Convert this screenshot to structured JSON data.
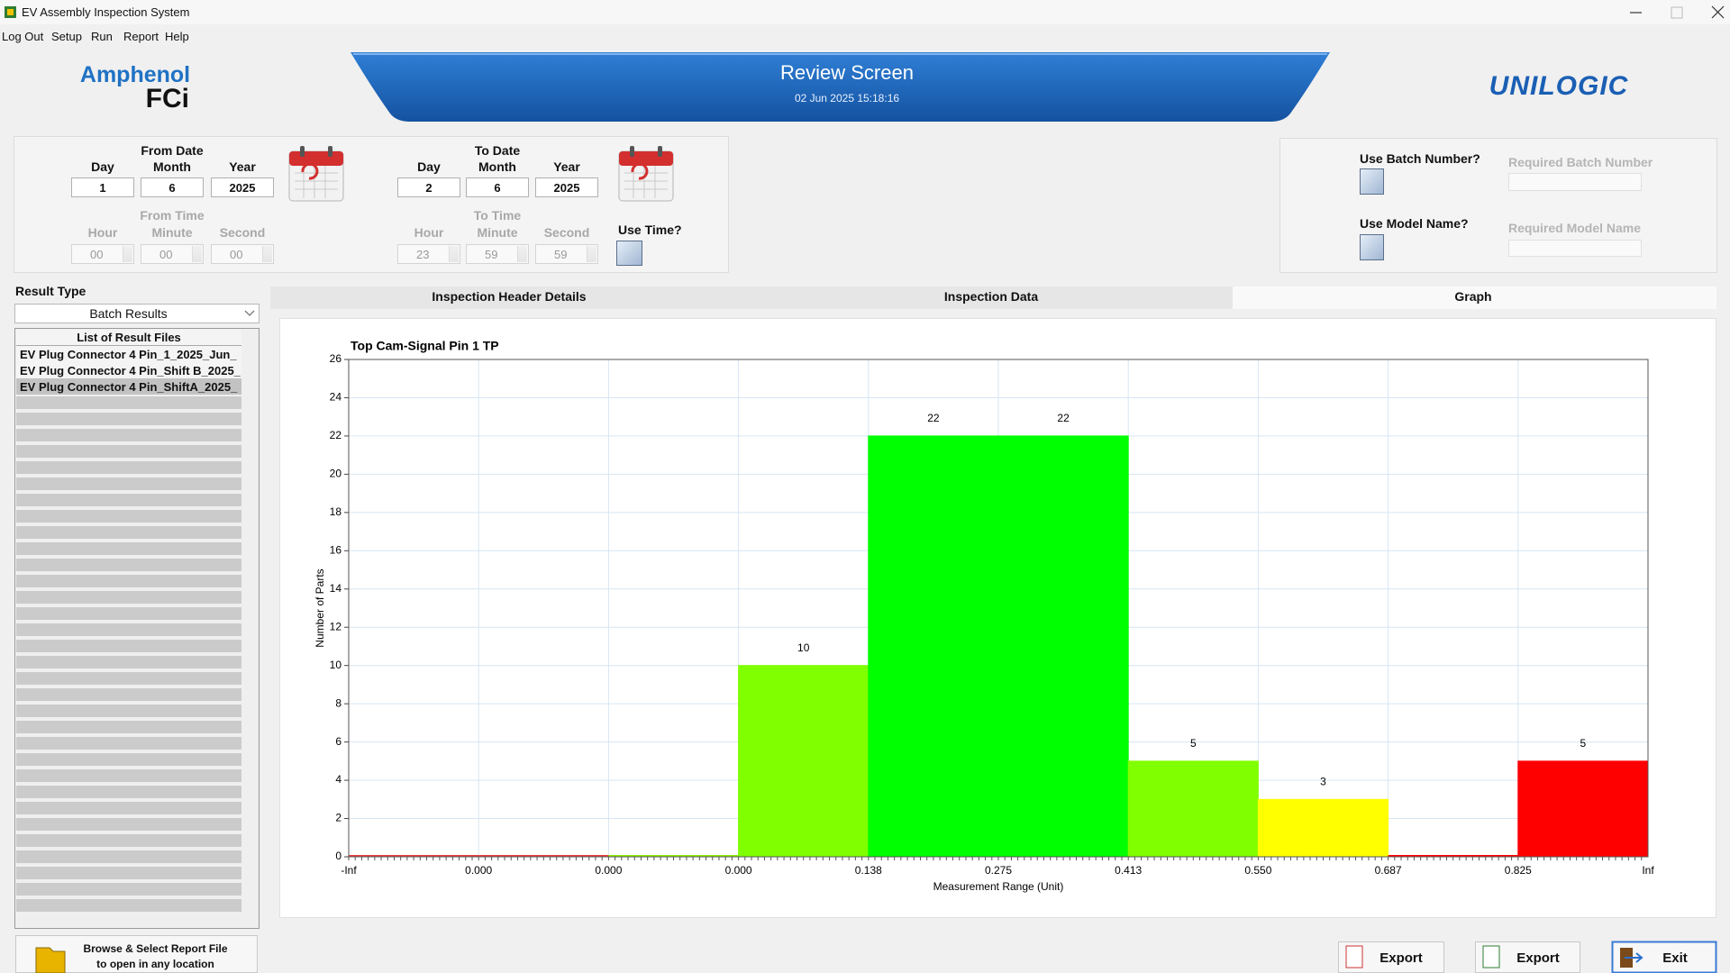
{
  "window": {
    "title": "EV Assembly Inspection System"
  },
  "menu": [
    "Log Out",
    "Setup",
    "Run",
    "Report",
    "Help"
  ],
  "header": {
    "brand_left_top": "Amphenol",
    "brand_left_bottom": "FCi",
    "title": "Review Screen",
    "datetime": "02 Jun 2025 15:18:16",
    "brand_right": "UNILOGIC"
  },
  "filters": {
    "from_date": {
      "heading": "From Date",
      "fields": [
        {
          "label": "Day",
          "value": "1"
        },
        {
          "label": "Month",
          "value": "6"
        },
        {
          "label": "Year",
          "value": "2025"
        }
      ]
    },
    "from_time": {
      "heading": "From Time",
      "fields": [
        {
          "label": "Hour",
          "value": "00"
        },
        {
          "label": "Minute",
          "value": "00"
        },
        {
          "label": "Second",
          "value": "00"
        }
      ]
    },
    "to_date": {
      "heading": "To Date",
      "fields": [
        {
          "label": "Day",
          "value": "2"
        },
        {
          "label": "Month",
          "value": "6"
        },
        {
          "label": "Year",
          "value": "2025"
        }
      ]
    },
    "to_time": {
      "heading": "To Time",
      "fields": [
        {
          "label": "Hour",
          "value": "23"
        },
        {
          "label": "Minute",
          "value": "59"
        },
        {
          "label": "Second",
          "value": "59"
        }
      ]
    },
    "use_time": "Use Time?"
  },
  "batch": {
    "use_batch": "Use Batch Number?",
    "batch_placeholder": "Required Batch Number",
    "use_model": "Use Model Name?",
    "model_placeholder": "Required Model Name"
  },
  "results": {
    "type_label": "Result Type",
    "type_value": "Batch Results",
    "list_title": "List of Result Files",
    "files": [
      "EV Plug Connector 4 Pin_1_2025_Jun_",
      "EV Plug Connector 4 Pin_Shift B_2025_",
      "EV Plug Connector 4 Pin_ShiftA_2025_"
    ]
  },
  "tabs": [
    "Inspection  Header Details",
    "Inspection Data",
    "Graph"
  ],
  "chart_data": {
    "type": "histogram",
    "title": "Top Cam-Signal Pin 1 TP",
    "xlabel": "Measurement Range (Unit)",
    "ylabel": "Number of Parts",
    "bins": [
      "-Inf",
      "0.000",
      "0.000",
      "0.000",
      "0.138",
      "0.275",
      "0.413",
      "0.550",
      "0.687",
      "0.825",
      "Inf"
    ],
    "values": [
      0,
      0,
      0,
      10,
      22,
      22,
      5,
      3,
      0,
      5
    ],
    "colors": [
      "#e83a3a",
      "#e83a3a",
      "#8cf000",
      "#80ff00",
      "#00ff00",
      "#00ff00",
      "#80ff00",
      "#ffff00",
      "#ff0000",
      "#ff0000"
    ],
    "ylim": [
      0,
      26
    ],
    "yticks": [
      0,
      2,
      4,
      6,
      8,
      10,
      12,
      14,
      16,
      18,
      20,
      22,
      24,
      26
    ],
    "grid": true
  },
  "footer": {
    "browse": [
      "Browse & Select Report File",
      "to open in any location"
    ],
    "buttons": [
      "Export",
      "Export",
      "Exit"
    ]
  }
}
